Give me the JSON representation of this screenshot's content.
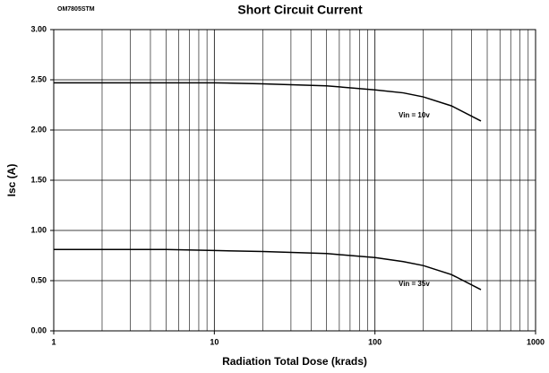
{
  "chart_data": {
    "type": "line",
    "title": "Short Circuit Current",
    "subtitle": "OM7805STM",
    "xlabel": "Radiation Total Dose (krads)",
    "ylabel": "Isc (A)",
    "x": [
      1,
      2,
      5,
      10,
      20,
      50,
      100,
      150,
      200,
      300,
      457
    ],
    "series": [
      {
        "name": "Vin = 10v",
        "color": "#000000",
        "values": [
          2.47,
          2.47,
          2.47,
          2.47,
          2.46,
          2.44,
          2.4,
          2.37,
          2.33,
          2.24,
          2.09
        ]
      },
      {
        "name": "Vin = 35v",
        "color": "#000000",
        "values": [
          0.81,
          0.81,
          0.81,
          0.8,
          0.79,
          0.77,
          0.73,
          0.69,
          0.65,
          0.56,
          0.41
        ]
      }
    ],
    "xscale": "log",
    "xlim": [
      1,
      1000
    ],
    "xticks": [
      1,
      10,
      100,
      1000
    ],
    "ylim": [
      0,
      3
    ],
    "yticks": [
      {
        "value": 0,
        "label": "0.00"
      },
      {
        "value": 0.5,
        "label": "0.50"
      },
      {
        "value": 1,
        "label": "1.00"
      },
      {
        "value": 1.5,
        "label": "1.50"
      },
      {
        "value": 2,
        "label": "2.00"
      },
      {
        "value": 2.5,
        "label": "2.50"
      },
      {
        "value": 3,
        "label": "3.00"
      }
    ],
    "grid": true,
    "minor_grid": true
  }
}
